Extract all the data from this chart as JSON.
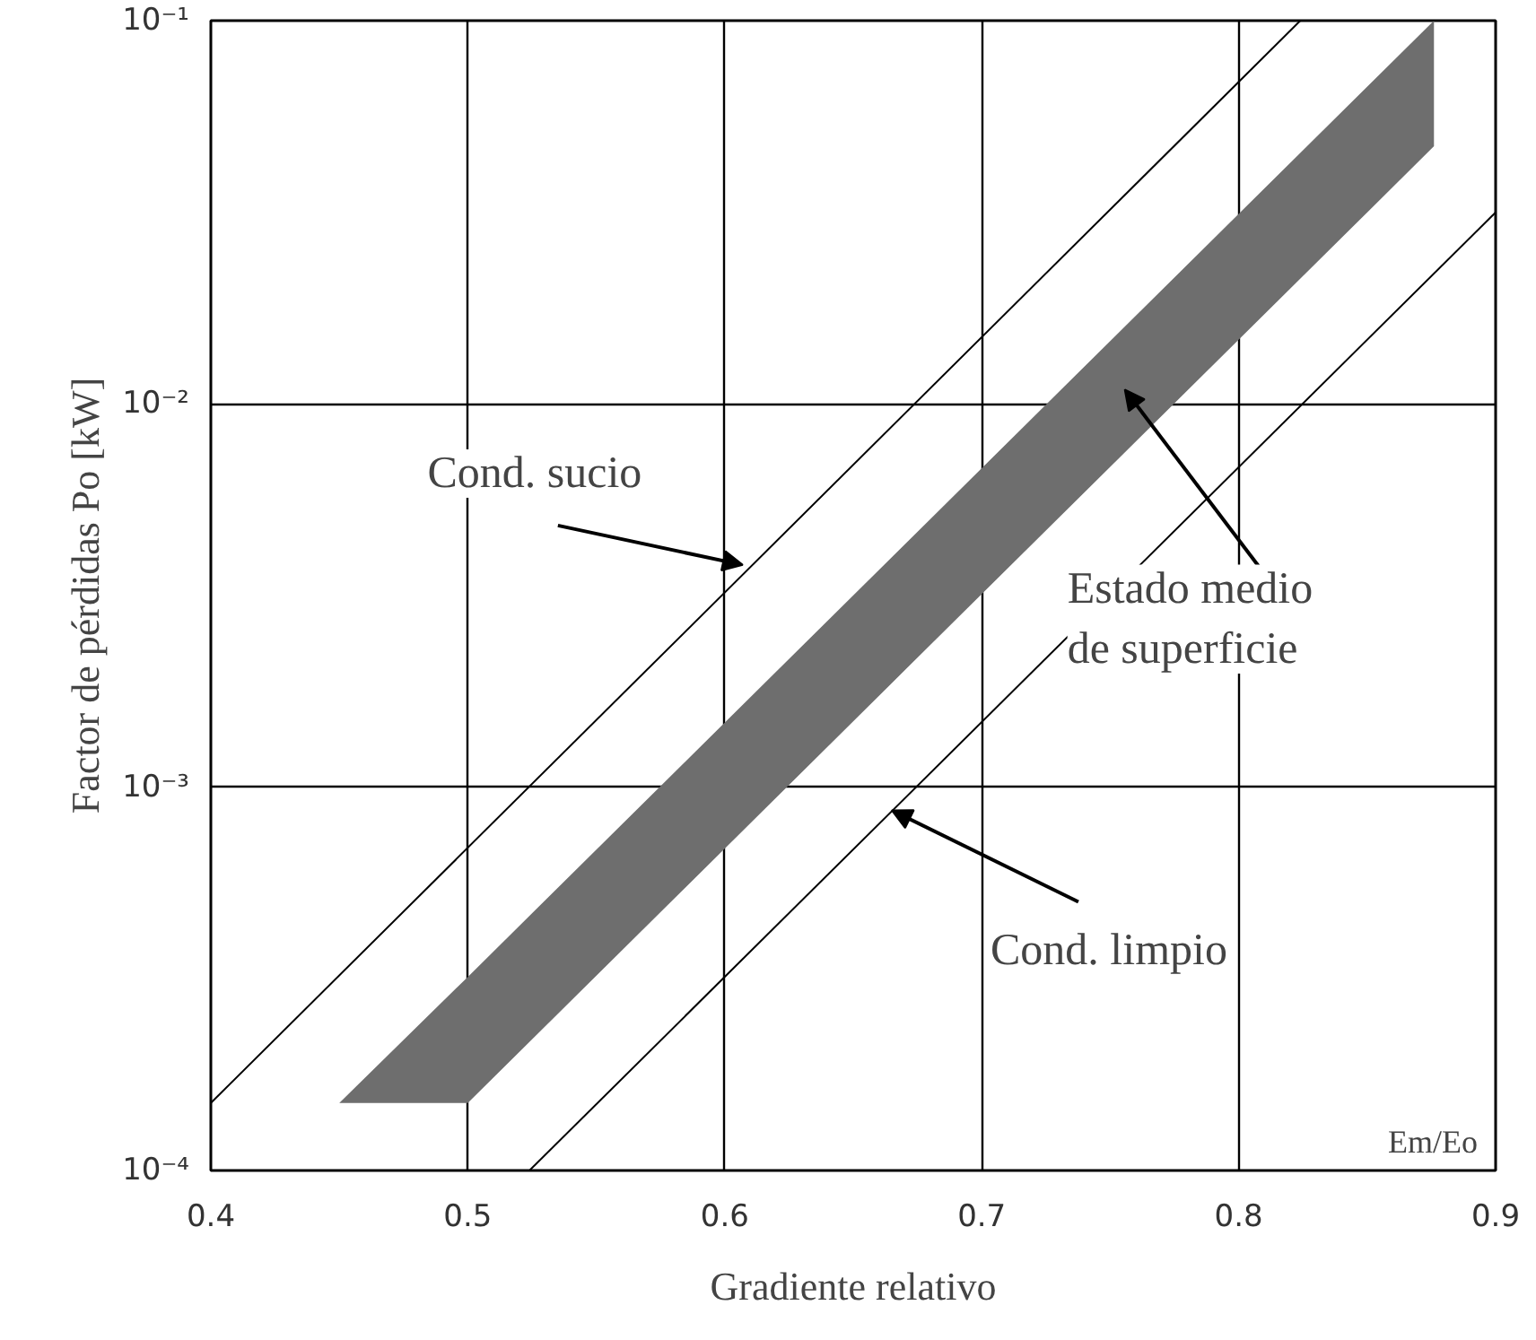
{
  "chart_data": {
    "type": "line",
    "xlabel": "Gradiente relativo",
    "ylabel": "Factor de pérdidas Po [kW]",
    "log": "y",
    "xlim": [
      0.4,
      0.9
    ],
    "ylim": [
      0.0001,
      0.1
    ],
    "xticks": [
      0.4,
      0.5,
      0.6,
      0.7,
      0.8,
      0.9
    ],
    "yticks": [
      {
        "value": 0.0001,
        "label": "10⁻⁴"
      },
      {
        "value": 0.001,
        "label": "10⁻³"
      },
      {
        "value": 0.01,
        "label": "10⁻²"
      },
      {
        "value": 0.1,
        "label": "10⁻¹"
      }
    ],
    "grid": true,
    "marker": "none",
    "line_style": "solid",
    "series": [
      {
        "type": "area",
        "color": "#6e6e6e",
        "x": [
          0.45,
          0.5,
          0.876
        ],
        "values": [
          null,
          null,
          null
        ],
        "upper": [
          0.00015,
          0.00032,
          0.1
        ],
        "lower": [
          0.00015,
          0.00015,
          0.047
        ]
      },
      {
        "color": "#000000",
        "x": [
          0.4,
          0.824
        ],
        "values": [
          0.00015,
          0.1
        ]
      },
      {
        "color": "#000000",
        "x": [
          0.524,
          0.9
        ],
        "values": [
          0.0001,
          0.0316
        ]
      }
    ],
    "annotations": [
      {
        "text": "Cond. sucio",
        "x": 0.607,
        "y": 0.0038
      },
      "Estado medio\nde superficie",
      {
        "text": "Cond. limpio",
        "x": 0.665,
        "y": 0.00087
      },
      "Em/Eo"
    ]
  }
}
